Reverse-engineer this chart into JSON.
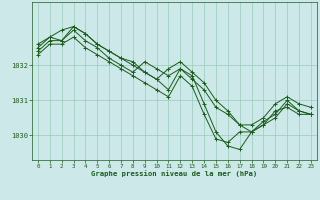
{
  "bg_color": "#cce8e8",
  "grid_color": "#99ccbb",
  "line_color": "#1a5c1a",
  "marker_color": "#1a5c1a",
  "xlabel": "Graphe pression niveau de la mer (hPa)",
  "ylim_min": 1029.3,
  "ylim_max": 1033.8,
  "yticks": [
    1030,
    1031,
    1032
  ],
  "xticks": [
    0,
    1,
    2,
    3,
    4,
    5,
    6,
    7,
    8,
    9,
    10,
    11,
    12,
    13,
    14,
    15,
    16,
    17,
    18,
    19,
    20,
    21,
    22,
    23
  ],
  "series": [
    [
      1032.6,
      1032.8,
      1032.7,
      1033.1,
      1032.9,
      1032.6,
      1032.4,
      1032.2,
      1032.0,
      1031.8,
      1031.6,
      1031.3,
      1031.9,
      1031.6,
      1031.3,
      1030.8,
      1030.6,
      1030.3,
      1030.1,
      1030.3,
      1030.7,
      1030.8,
      1030.6,
      1030.6
    ],
    [
      1032.4,
      1032.7,
      1032.7,
      1033.0,
      1032.7,
      1032.5,
      1032.2,
      1032.0,
      1031.8,
      1032.1,
      1031.9,
      1031.7,
      1031.9,
      1031.7,
      1030.9,
      1030.1,
      1029.7,
      1029.6,
      1030.1,
      1030.3,
      1030.5,
      1030.9,
      1030.7,
      1030.6
    ],
    [
      1032.3,
      1032.6,
      1032.6,
      1032.8,
      1032.5,
      1032.3,
      1032.1,
      1031.9,
      1031.7,
      1031.5,
      1031.3,
      1031.1,
      1031.7,
      1031.4,
      1030.6,
      1029.9,
      1029.8,
      1030.1,
      1030.1,
      1030.4,
      1030.6,
      1031.0,
      1030.7,
      1030.6
    ],
    [
      1032.5,
      1032.8,
      1033.0,
      1033.1,
      1032.9,
      1032.6,
      1032.4,
      1032.2,
      1032.1,
      1031.8,
      1031.6,
      1031.9,
      1032.1,
      1031.8,
      1031.5,
      1031.0,
      1030.7,
      1030.3,
      1030.3,
      1030.5,
      1030.9,
      1031.1,
      1030.9,
      1030.8
    ]
  ]
}
